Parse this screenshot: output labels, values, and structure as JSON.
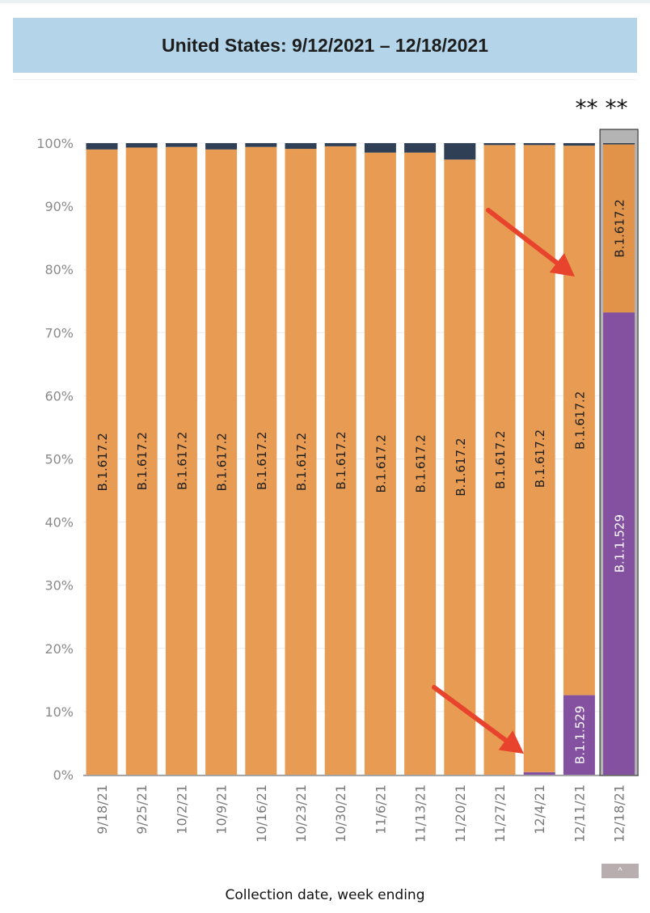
{
  "title": "United States: 9/12/2021 – 12/18/2021",
  "note_marks": "** **",
  "xlabel": "Collection date, week ending",
  "scroll_label": "^",
  "colors": {
    "delta": "#e89c53",
    "delta_highlight": "#e19349",
    "omicron": "#8450a0",
    "other": "#2f3f55",
    "arrow": "#e8432c",
    "highlight_border": "#8f8f8f"
  },
  "chart_data": {
    "type": "bar",
    "stacked": true,
    "categories": [
      "9/18/21",
      "9/25/21",
      "10/2/21",
      "10/9/21",
      "10/16/21",
      "10/23/21",
      "10/30/21",
      "11/6/21",
      "11/13/21",
      "11/20/21",
      "11/27/21",
      "12/4/21",
      "12/11/21",
      "12/18/21"
    ],
    "series": [
      {
        "name": "B.1.1.529",
        "color": "#8450a0",
        "values": [
          0,
          0,
          0,
          0,
          0,
          0,
          0,
          0,
          0,
          0,
          0,
          0.4,
          12.6,
          73.2
        ]
      },
      {
        "name": "B.1.617.2",
        "color": "#e89c53",
        "values": [
          99.0,
          99.3,
          99.4,
          99.0,
          99.4,
          99.1,
          99.5,
          98.5,
          98.5,
          97.4,
          99.7,
          99.3,
          87.0,
          26.6
        ]
      },
      {
        "name": "",
        "color": "#2f3f55",
        "values": [
          1.0,
          0.7,
          0.6,
          1.0,
          0.6,
          0.9,
          0.5,
          1.5,
          1.5,
          2.6,
          0.3,
          0.3,
          0.4,
          0.2
        ]
      }
    ],
    "bar_labels": {
      "B.1.617.2": [
        "B.1.617.2",
        "B.1.617.2",
        "B.1.617.2",
        "B.1.617.2",
        "B.1.617.2",
        "B.1.617.2",
        "B.1.617.2",
        "B.1.617.2",
        "B.1.617.2",
        "B.1.617.2",
        "B.1.617.2",
        "B.1.617.2",
        "B.1.617.2",
        "B.1.617.2"
      ],
      "B.1.1.529": [
        "",
        "",
        "",
        "",
        "",
        "",
        "",
        "",
        "",
        "",
        "",
        "",
        "B.1.1.529",
        "B.1.1.529"
      ]
    },
    "ylim": [
      0,
      100
    ],
    "yticks": [
      "0%",
      "10%",
      "20%",
      "30%",
      "40%",
      "50%",
      "60%",
      "70%",
      "80%",
      "90%",
      "100%"
    ],
    "grid": true,
    "highlighted_category": "12/18/21",
    "annotations": [
      "arrow toward 12/11/21 B.1.617.2 segment",
      "arrow toward 12/4/21 B.1.1.529 sliver"
    ]
  }
}
